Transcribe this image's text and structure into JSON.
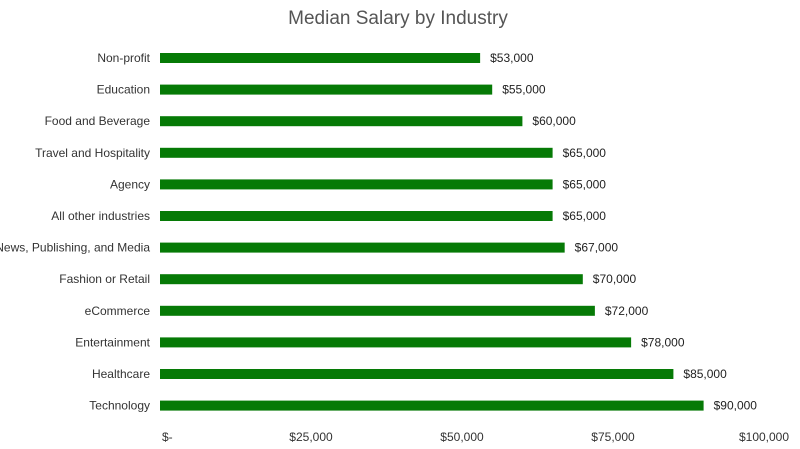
{
  "chart_data": {
    "type": "bar",
    "orientation": "horizontal",
    "title": "Median Salary by Industry",
    "xlabel": "",
    "ylabel": "",
    "categories": [
      "Non-profit",
      "Education",
      "Food and Beverage",
      "Travel and Hospitality",
      "Agency",
      "All other industries",
      "News, Publishing, and Media",
      "Fashion or Retail",
      "eCommerce",
      "Entertainment",
      "Healthcare",
      "Technology"
    ],
    "values": [
      53000,
      55000,
      60000,
      65000,
      65000,
      65000,
      67000,
      70000,
      72000,
      78000,
      85000,
      90000
    ],
    "value_labels": [
      "$53,000",
      "$55,000",
      "$60,000",
      "$65,000",
      "$65,000",
      "$65,000",
      "$67,000",
      "$70,000",
      "$72,000",
      "$78,000",
      "$85,000",
      "$90,000"
    ],
    "xlim": [
      0,
      100000
    ],
    "x_ticks": [
      0,
      25000,
      50000,
      75000,
      100000
    ],
    "x_tick_labels": [
      "$-",
      "$25,000",
      "$50,000",
      "$75,000",
      "$100,000"
    ],
    "grid": false,
    "legend": "none",
    "bar_color": "#067a06"
  }
}
